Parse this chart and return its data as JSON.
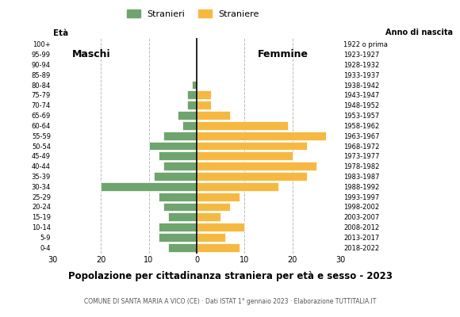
{
  "age_groups": [
    "0-4",
    "5-9",
    "10-14",
    "15-19",
    "20-24",
    "25-29",
    "30-34",
    "35-39",
    "40-44",
    "45-49",
    "50-54",
    "55-59",
    "60-64",
    "65-69",
    "70-74",
    "75-79",
    "80-84",
    "85-89",
    "90-94",
    "95-99",
    "100+"
  ],
  "birth_years": [
    "2018-2022",
    "2013-2017",
    "2008-2012",
    "2003-2007",
    "1998-2002",
    "1993-1997",
    "1988-1992",
    "1983-1987",
    "1978-1982",
    "1973-1977",
    "1968-1972",
    "1963-1967",
    "1958-1962",
    "1953-1957",
    "1948-1952",
    "1943-1947",
    "1938-1942",
    "1933-1937",
    "1928-1932",
    "1923-1927",
    "1922 o prima"
  ],
  "males": [
    6,
    8,
    8,
    6,
    7,
    8,
    20,
    9,
    7,
    8,
    10,
    7,
    3,
    4,
    2,
    2,
    1,
    0,
    0,
    0,
    0
  ],
  "females": [
    9,
    6,
    10,
    5,
    7,
    9,
    17,
    23,
    25,
    20,
    23,
    27,
    19,
    7,
    3,
    3,
    0,
    0,
    0,
    0,
    0
  ],
  "male_color": "#6fa46f",
  "female_color": "#f5b942",
  "background_color": "#ffffff",
  "title": "Popolazione per cittadinanza straniera per età e sesso - 2023",
  "subtitle": "COMUNE DI SANTA MARIA A VICO (CE) · Dati ISTAT 1° gennaio 2023 · Elaborazione TUTTITALIA.IT",
  "ylabel_left": "Età",
  "ylabel_right": "Anno di nascita",
  "legend_male": "Stranieri",
  "legend_female": "Straniere",
  "label_maschi": "Maschi",
  "label_femmine": "Femmine",
  "xlim": 30,
  "grid_color": "#bbbbbb"
}
